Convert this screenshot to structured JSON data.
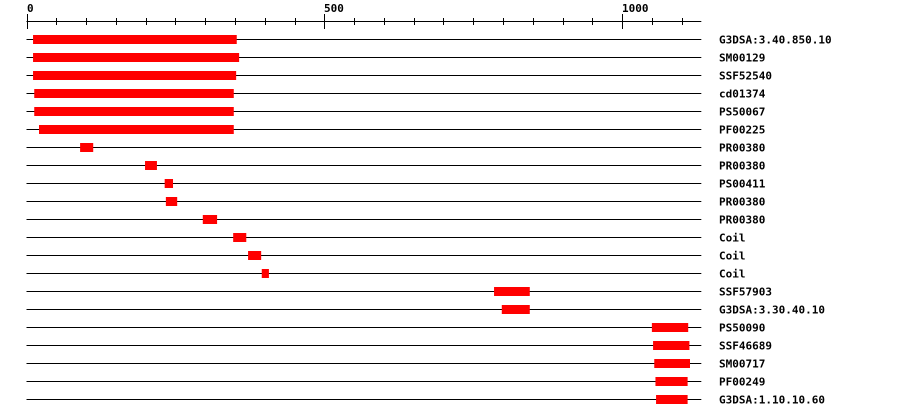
{
  "chart_data": {
    "type": "domain-track",
    "axis": {
      "min": 0,
      "max": 1133,
      "major_tick_labels": [
        "0",
        "500",
        "1000"
      ],
      "major_ticks": [
        0,
        500,
        1000
      ],
      "minor_tick_step": 50
    },
    "bar_color": "#ff0000",
    "tracks": [
      {
        "label": "G3DSA:3.40.850.10",
        "start": 11,
        "end": 353
      },
      {
        "label": "SM00129",
        "start": 11,
        "end": 357
      },
      {
        "label": "SSF52540",
        "start": 11,
        "end": 352
      },
      {
        "label": "cd01374",
        "start": 13,
        "end": 348
      },
      {
        "label": "PS50067",
        "start": 13,
        "end": 348
      },
      {
        "label": "PF00225",
        "start": 21,
        "end": 348
      },
      {
        "label": "PR00380",
        "start": 90,
        "end": 112
      },
      {
        "label": "PR00380",
        "start": 199,
        "end": 219
      },
      {
        "label": "PS00411",
        "start": 232,
        "end": 246
      },
      {
        "label": "PR00380",
        "start": 234,
        "end": 253
      },
      {
        "label": "PR00380",
        "start": 296,
        "end": 320
      },
      {
        "label": "Coil",
        "start": 347,
        "end": 369
      },
      {
        "label": "Coil",
        "start": 372,
        "end": 394
      },
      {
        "label": "Coil",
        "start": 395,
        "end": 407
      },
      {
        "label": "SSF57903",
        "start": 785,
        "end": 845
      },
      {
        "label": "G3DSA:3.30.40.10",
        "start": 798,
        "end": 845
      },
      {
        "label": "PS50090",
        "start": 1050,
        "end": 1111
      },
      {
        "label": "SSF46689",
        "start": 1052,
        "end": 1113
      },
      {
        "label": "SM00717",
        "start": 1054,
        "end": 1114
      },
      {
        "label": "PF00249",
        "start": 1056,
        "end": 1110
      },
      {
        "label": "G3DSA:1.10.10.60",
        "start": 1057,
        "end": 1110
      }
    ]
  }
}
